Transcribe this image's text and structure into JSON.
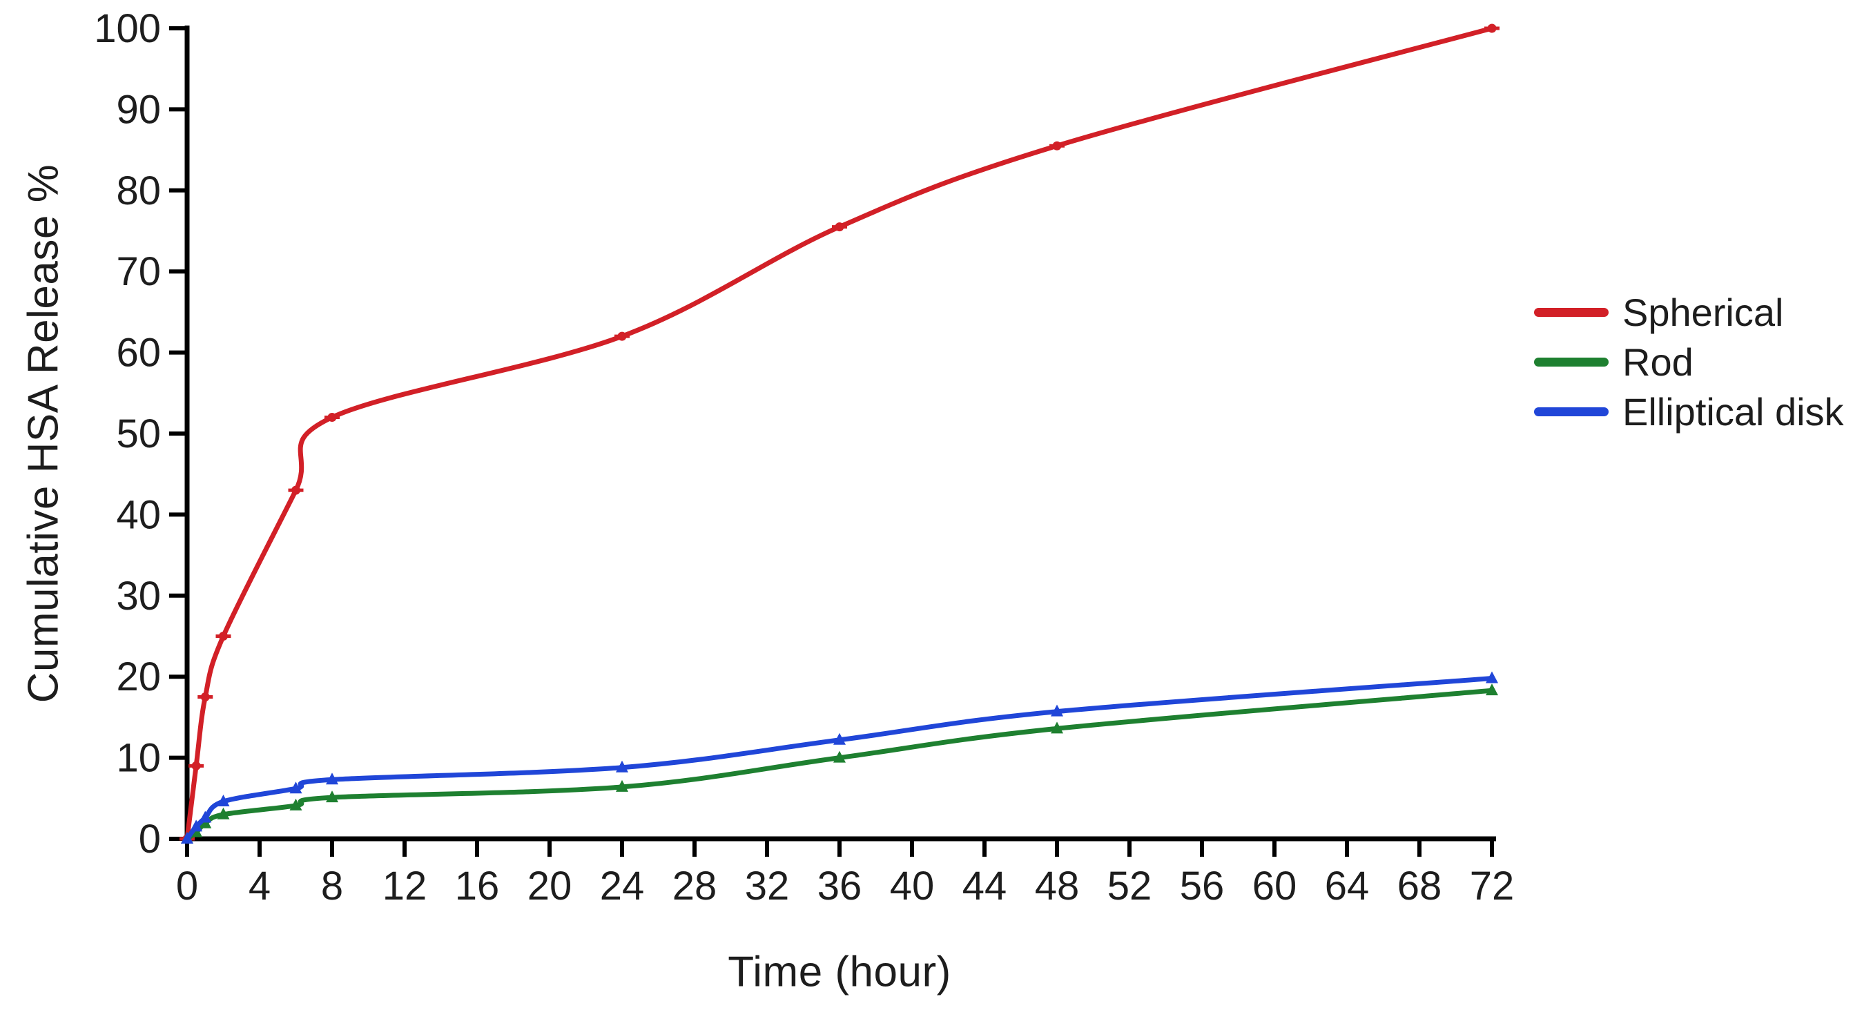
{
  "chart_data": {
    "type": "line",
    "title": "",
    "xlabel": "Time (hour)",
    "ylabel": "Cumulative HSA Release %",
    "xlim": [
      0,
      72
    ],
    "ylim": [
      0,
      100
    ],
    "x_ticks": [
      0,
      4,
      8,
      12,
      16,
      20,
      24,
      28,
      32,
      36,
      40,
      44,
      48,
      52,
      56,
      60,
      64,
      68,
      72
    ],
    "y_ticks": [
      0,
      10,
      20,
      30,
      40,
      50,
      60,
      70,
      80,
      90,
      100
    ],
    "grid": false,
    "legend_position": "right",
    "axis_color": "#000000",
    "text_color": "#1d1d1d",
    "x": [
      0,
      0.5,
      1,
      2,
      6,
      8,
      24,
      36,
      48,
      72
    ],
    "series": [
      {
        "name": "Spherical",
        "color": "#d22027",
        "marker": "cross",
        "values": [
          0,
          9,
          17.5,
          25,
          43,
          52,
          62,
          75.5,
          85.5,
          100
        ]
      },
      {
        "name": "Rod",
        "color": "#1e8030",
        "marker": "triangle",
        "values": [
          0,
          0.8,
          1.9,
          3,
          4.1,
          5.1,
          6.4,
          10,
          13.6,
          18.3
        ]
      },
      {
        "name": "Elliptical disk",
        "color": "#2046d8",
        "marker": "triangle",
        "values": [
          0,
          1.5,
          2.6,
          4.6,
          6.2,
          7.3,
          8.8,
          12.2,
          15.7,
          19.8
        ]
      }
    ]
  }
}
